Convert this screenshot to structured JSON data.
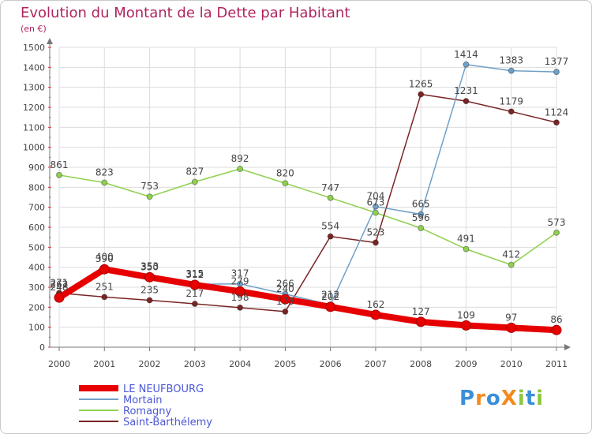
{
  "chart_data": {
    "type": "line",
    "title": "Evolution du Montant de la Dette par Habitant",
    "subtitle": "(en €)",
    "xlabel": "",
    "ylabel": "",
    "x": [
      "2000",
      "2001",
      "2002",
      "2003",
      "2004",
      "2005",
      "2006",
      "2007",
      "2008",
      "2009",
      "2010",
      "2011"
    ],
    "ylim": [
      0,
      1500
    ],
    "yticks": [
      0,
      100,
      200,
      300,
      400,
      500,
      600,
      700,
      800,
      900,
      1000,
      1100,
      1200,
      1300,
      1400,
      1500
    ],
    "grid": true,
    "legend_position": "bottom-left",
    "series": [
      {
        "name": "Romagny",
        "color": "#8fd14f",
        "values": [
          861,
          823,
          753,
          827,
          892,
          820,
          747,
          673,
          596,
          491,
          412,
          573
        ]
      },
      {
        "name": "Saint-Barthélemy",
        "color": "#7a2525",
        "values": [
          271,
          251,
          235,
          217,
          198,
          178,
          554,
          523,
          1265,
          1231,
          1179,
          1124
        ]
      },
      {
        "name": "Mortain",
        "color": "#6fa0c8",
        "values": [
          262,
          400,
          353,
          315,
          317,
          266,
          212,
          704,
          665,
          1414,
          1383,
          1377
        ]
      },
      {
        "name": "LE NEUFBOURG",
        "color": "#e60000",
        "values": [
          248,
          390,
          350,
          312,
          279,
          240,
          202,
          162,
          127,
          109,
          97,
          86
        ]
      }
    ],
    "labels_shown": [
      [
        "262",
        "400",
        "353",
        "315",
        "317",
        "266",
        "212",
        "704",
        "665",
        "1414",
        "1383",
        "1377"
      ],
      [
        "248",
        "390",
        "350",
        "312",
        "279",
        "240",
        "202",
        "162",
        "127",
        "109",
        "97",
        "86"
      ],
      [
        "861",
        "823",
        "753",
        "827",
        "892",
        "820",
        "747",
        "673",
        "596",
        "491",
        "412",
        "573"
      ],
      [
        "271",
        "251",
        "235",
        "217",
        "198",
        "178",
        "554",
        "523",
        "1265",
        "1231",
        "1179",
        "1124"
      ]
    ]
  },
  "legend": [
    {
      "name": "LE NEUFBOURG",
      "color": "#e60000"
    },
    {
      "name": "Mortain",
      "color": "#6fa0c8"
    },
    {
      "name": "Romagny",
      "color": "#8fd14f"
    },
    {
      "name": "Saint-Barthélemy",
      "color": "#7a2525"
    }
  ],
  "logo": {
    "text": "ProXiti",
    "letters": [
      "P",
      "r",
      "o",
      "X",
      "i",
      "t",
      "i"
    ],
    "colors": [
      "#3b8fd8",
      "#f28a1e",
      "#3b8fd8",
      "#f28a1e",
      "#8cc63f",
      "#3b8fd8",
      "#8cc63f"
    ]
  },
  "colors": {
    "title": "#b0245f",
    "axis": "#808080",
    "grid": "#dcdcdc",
    "legend_text": "#4b57d6"
  }
}
